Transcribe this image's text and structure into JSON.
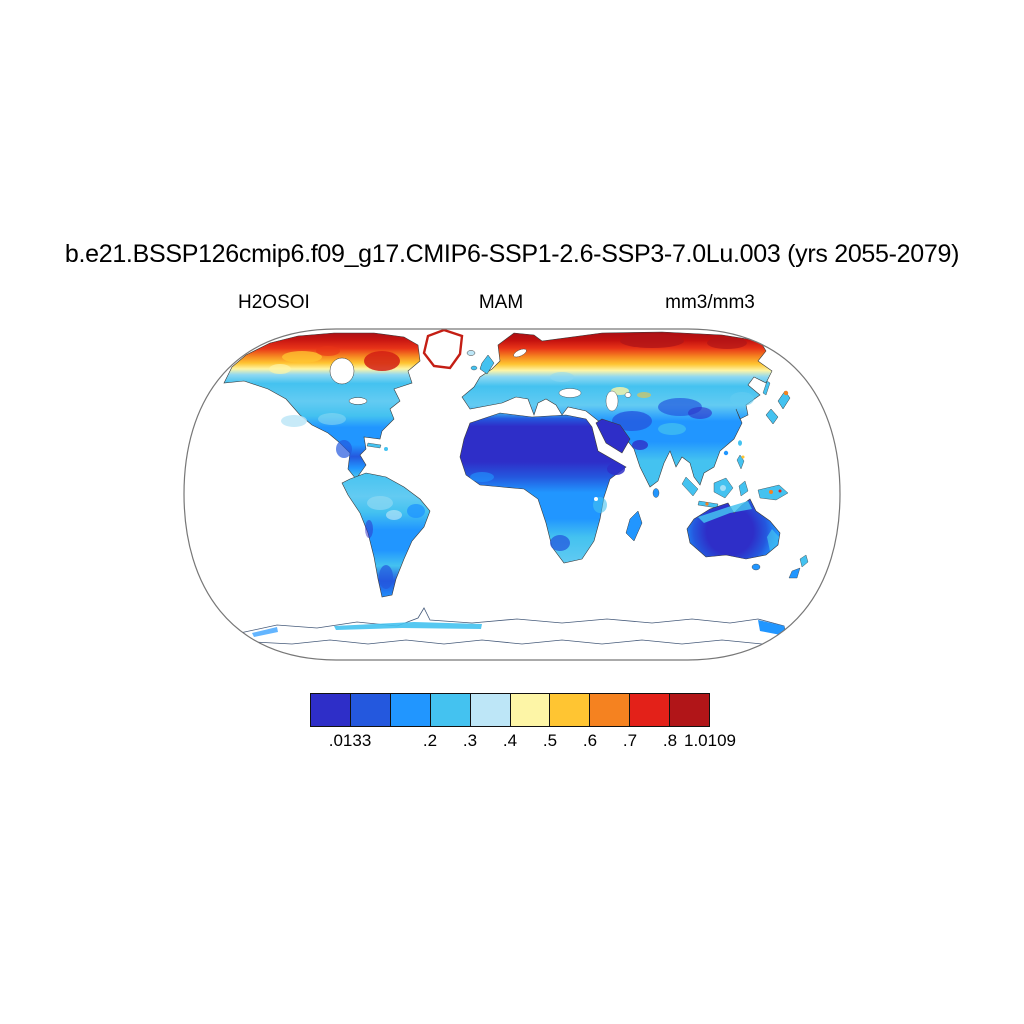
{
  "title": "b.e21.BSSP126cmip6.f09_g17.CMIP6-SSP1-2.6-SSP3-7.0Lu.003 (yrs 2055-2079)",
  "subtitle": {
    "left": "H2OSOI",
    "center": "MAM",
    "right": "mm3/mm3"
  },
  "colorbar": {
    "colors": [
      "#2E2EC8",
      "#2458DE",
      "#2196FF",
      "#44C2F0",
      "#BDE6F7",
      "#FDF5A6",
      "#FFC532",
      "#F58220",
      "#E32119",
      "#B11518"
    ],
    "tick_labels": [
      ".0133",
      ".2",
      ".3",
      ".4",
      ".5",
      ".6",
      ".7",
      ".8",
      "1.0109"
    ],
    "tick_positions_pct": [
      10,
      30,
      40,
      50,
      60,
      70,
      80,
      90,
      100
    ]
  },
  "chart_data": {
    "type": "heatmap",
    "title": "b.e21.BSSP126cmip6.f09_g17.CMIP6-SSP1-2.6-SSP3-7.0Lu.003 (yrs 2055-2079)",
    "variable": "H2OSOI",
    "season": "MAM",
    "units": "mm3/mm3",
    "projection": "Robinson-style global map, land-only shading, white ocean",
    "value_min": 0.0133,
    "value_max": 1.0109,
    "levels": [
      0.0133,
      0.1,
      0.2,
      0.3,
      0.4,
      0.5,
      0.6,
      0.7,
      0.8,
      1.0109
    ],
    "palette": [
      "#2E2EC8",
      "#2458DE",
      "#2196FF",
      "#44C2F0",
      "#BDE6F7",
      "#FDF5A6",
      "#FFC532",
      "#F58220",
      "#E32119",
      "#B11518"
    ],
    "legend_position": "bottom-center",
    "regions_approx_values": [
      {
        "region": "Arctic Canada / Canadian archipelago",
        "value": 0.9
      },
      {
        "region": "Alaska and boreal Canada",
        "value": 0.7
      },
      {
        "region": "Northern Siberia coast",
        "value": 0.9
      },
      {
        "region": "Scandinavia north",
        "value": 0.75
      },
      {
        "region": "Contiguous United States",
        "value": 0.35
      },
      {
        "region": "Southwest US",
        "value": 0.45
      },
      {
        "region": "Europe mid-latitudes",
        "value": 0.35
      },
      {
        "region": "Central Asia steppe",
        "value": 0.55
      },
      {
        "region": "Middle East / Arabia",
        "value": 0.1
      },
      {
        "region": "Sahara",
        "value": 0.08
      },
      {
        "region": "Sahel and central Africa",
        "value": 0.25
      },
      {
        "region": "Southern Africa",
        "value": 0.3
      },
      {
        "region": "India",
        "value": 0.25
      },
      {
        "region": "Southeast Asia / Indonesia",
        "value": 0.35
      },
      {
        "region": "Amazon basin",
        "value": 0.4
      },
      {
        "region": "Patagonia",
        "value": 0.2
      },
      {
        "region": "Australia interior",
        "value": 0.1
      },
      {
        "region": "Greenland interior",
        "value": null
      },
      {
        "region": "Greenland coastal fringe",
        "value": 0.9
      },
      {
        "region": "Antarctica interior",
        "value": null
      },
      {
        "region": "Antarctica coastal fringe",
        "value": 0.35
      }
    ]
  }
}
